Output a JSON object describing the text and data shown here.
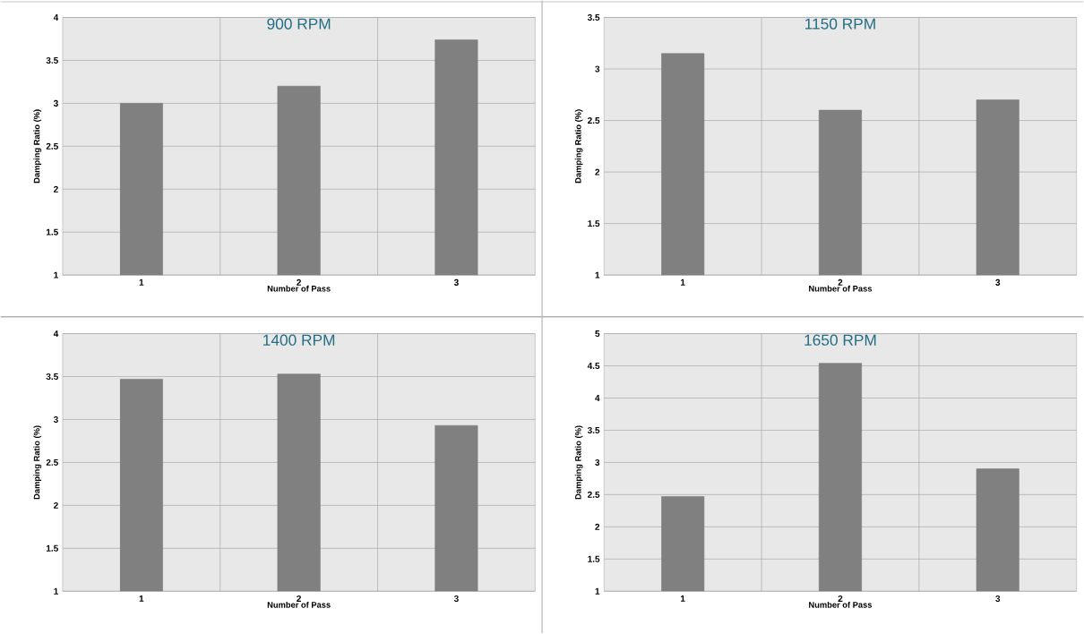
{
  "chart_data": [
    {
      "type": "bar",
      "title": "900 RPM",
      "xlabel": "Number of Pass",
      "ylabel": "Damping Ratio (%)",
      "categories": [
        "1",
        "2",
        "3"
      ],
      "values": [
        3.0,
        3.2,
        3.74
      ],
      "color": "#808080",
      "ylim": [
        1,
        4
      ],
      "yticks": [
        1,
        1.5,
        2,
        2.5,
        3,
        3.5,
        4
      ],
      "grid": true
    },
    {
      "type": "bar",
      "title": "1150 RPM",
      "xlabel": "Number of Pass",
      "ylabel": "Damping Ratio (%)",
      "categories": [
        "1",
        "2",
        "3"
      ],
      "values": [
        3.15,
        2.6,
        2.7
      ],
      "color": "#808080",
      "ylim": [
        1,
        3.5
      ],
      "yticks": [
        1,
        1.5,
        2,
        2.5,
        3,
        3.5
      ],
      "grid": true
    },
    {
      "type": "bar",
      "title": "1400 RPM",
      "xlabel": "Number of Pass",
      "ylabel": "Damping Ratio (%)",
      "categories": [
        "1",
        "2",
        "3"
      ],
      "values": [
        3.47,
        3.53,
        2.93
      ],
      "color": "#808080",
      "ylim": [
        1,
        4
      ],
      "yticks": [
        1,
        1.5,
        2,
        2.5,
        3,
        3.5,
        4
      ],
      "grid": true
    },
    {
      "type": "bar",
      "title": "1650 RPM",
      "xlabel": "Number of Pass",
      "ylabel": "Damping Ratio (%)",
      "categories": [
        "1",
        "2",
        "3"
      ],
      "values": [
        2.47,
        4.54,
        2.9
      ],
      "color": "#808080",
      "ylim": [
        1,
        5
      ],
      "yticks": [
        1,
        1.5,
        2,
        2.5,
        3,
        3.5,
        4,
        4.5,
        5
      ],
      "grid": true
    }
  ]
}
